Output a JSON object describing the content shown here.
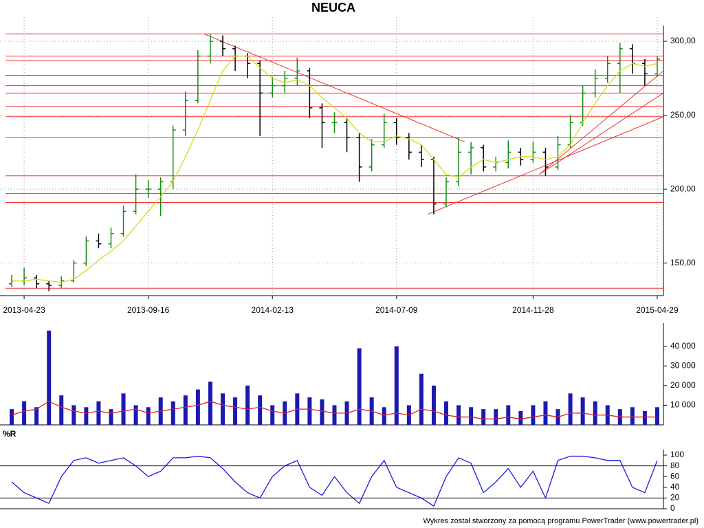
{
  "chart_data": [
    {
      "type": "ohlc",
      "title": "NEUCA",
      "categories": [
        null,
        "2013-04-23",
        null,
        null,
        null,
        null,
        null,
        null,
        null,
        null,
        null,
        "2013-09-16",
        null,
        null,
        null,
        null,
        null,
        null,
        null,
        null,
        null,
        "2014-02-13",
        null,
        null,
        null,
        null,
        null,
        null,
        null,
        null,
        null,
        "2014-07-09",
        null,
        null,
        null,
        null,
        null,
        null,
        null,
        null,
        null,
        null,
        "2014-11-28",
        null,
        null,
        null,
        null,
        null,
        null,
        null,
        null,
        null,
        "2015-04-29"
      ],
      "open": [
        136,
        138,
        140,
        136,
        135,
        138,
        150,
        165,
        163,
        170,
        185,
        200,
        200,
        205,
        240,
        260,
        290,
        300,
        295,
        290,
        285,
        265,
        270,
        275,
        280,
        255,
        245,
        245,
        235,
        215,
        230,
        245,
        235,
        225,
        220,
        190,
        205,
        225,
        228,
        215,
        218,
        225,
        220,
        225,
        215,
        230,
        245,
        265,
        275,
        285,
        295,
        285,
        278
      ],
      "high": [
        142,
        147,
        142,
        138,
        141,
        152,
        168,
        170,
        174,
        189,
        210,
        206,
        208,
        243,
        266,
        294,
        305,
        304,
        297,
        292,
        287,
        276,
        280,
        289,
        282,
        258,
        252,
        248,
        238,
        234,
        251,
        248,
        238,
        230,
        222,
        208,
        235,
        232,
        230,
        222,
        233,
        228,
        232,
        228,
        236,
        250,
        270,
        281,
        290,
        299,
        298,
        288,
        290
      ],
      "low": [
        134,
        135,
        133,
        131,
        133,
        137,
        148,
        160,
        160,
        168,
        183,
        194,
        182,
        200,
        236,
        258,
        285,
        290,
        280,
        275,
        236,
        262,
        265,
        270,
        248,
        228,
        238,
        225,
        205,
        212,
        228,
        230,
        220,
        215,
        183,
        188,
        202,
        210,
        212,
        212,
        214,
        216,
        218,
        209,
        213,
        228,
        243,
        262,
        272,
        265,
        278,
        270,
        276
      ],
      "close": [
        138,
        140,
        136,
        135,
        138,
        150,
        165,
        163,
        170,
        185,
        200,
        200,
        205,
        240,
        260,
        290,
        300,
        295,
        290,
        285,
        265,
        270,
        275,
        280,
        255,
        245,
        245,
        235,
        215,
        230,
        245,
        235,
        225,
        220,
        190,
        205,
        225,
        228,
        215,
        218,
        225,
        220,
        225,
        215,
        230,
        245,
        265,
        275,
        285,
        295,
        285,
        278,
        288
      ],
      "up_color": "#138a13",
      "down_color": "#000000",
      "series": [
        {
          "color": "#d8d820",
          "values": [
            138,
            138,
            139,
            138,
            137,
            139,
            145,
            152,
            158,
            165,
            175,
            185,
            195,
            205,
            222,
            240,
            260,
            280,
            290,
            290,
            282,
            275,
            272,
            274,
            270,
            262,
            255,
            248,
            238,
            232,
            232,
            236,
            234,
            230,
            220,
            210,
            208,
            215,
            220,
            218,
            220,
            222,
            222,
            220,
            222,
            230,
            245,
            258,
            270,
            280,
            285,
            283,
            285
          ]
        }
      ],
      "levels": [
        305,
        290,
        287,
        277,
        270,
        265,
        256,
        249,
        235,
        209,
        197,
        191,
        133
      ],
      "trendlines": [
        [
          [
            16,
            305
          ],
          [
            37,
            232
          ]
        ],
        [
          [
            34,
            183
          ],
          [
            53,
            249
          ]
        ],
        [
          [
            43,
            210
          ],
          [
            53,
            280
          ]
        ],
        [
          [
            43,
            210
          ],
          [
            53,
            265
          ]
        ]
      ],
      "line_color": "#f03030",
      "ylim": [
        128,
        307
      ],
      "yticks": [
        {
          "value": 150,
          "label": "150,00"
        },
        {
          "value": 200,
          "label": "200,00"
        },
        {
          "value": 250,
          "label": "250,00"
        },
        {
          "value": 300,
          "label": "300,00"
        }
      ],
      "grid": true
    },
    {
      "type": "bar",
      "color": "#1a1ab0",
      "values": [
        8000,
        12000,
        9000,
        48000,
        15000,
        10000,
        9000,
        12000,
        8000,
        16000,
        10000,
        9000,
        14000,
        12000,
        15000,
        18000,
        22000,
        16000,
        14000,
        20000,
        15000,
        10000,
        12000,
        16000,
        14000,
        13000,
        10000,
        12000,
        39000,
        14000,
        9000,
        40000,
        10000,
        26000,
        20000,
        12000,
        10000,
        9000,
        8000,
        8000,
        10000,
        7000,
        10000,
        12000,
        8000,
        16000,
        14000,
        12000,
        10000,
        8000,
        9000,
        7000,
        9000
      ],
      "series": [
        {
          "color": "#e02020",
          "values": [
            5000,
            7000,
            8000,
            12000,
            9000,
            7000,
            6000,
            7000,
            6000,
            7000,
            8000,
            6000,
            7000,
            8000,
            9000,
            10000,
            12000,
            10000,
            9000,
            8000,
            9000,
            7000,
            6000,
            8000,
            8000,
            7000,
            6000,
            6000,
            8000,
            7000,
            5000,
            6000,
            5000,
            8000,
            7000,
            5000,
            4000,
            4000,
            3000,
            3000,
            4000,
            3000,
            4000,
            5000,
            4000,
            6000,
            6000,
            5000,
            5000,
            4000,
            4000,
            4000,
            4000
          ]
        }
      ],
      "ylim": [
        0,
        49000
      ],
      "yticks": [
        {
          "value": 10000,
          "label": "10 000"
        },
        {
          "value": 20000,
          "label": "20 000"
        },
        {
          "value": 30000,
          "label": "30 000"
        },
        {
          "value": 40000,
          "label": "40 000"
        }
      ]
    },
    {
      "type": "line",
      "title": "%R",
      "series": [
        {
          "color": "#1a1ae0",
          "values": [
            50,
            30,
            20,
            10,
            60,
            90,
            95,
            85,
            90,
            95,
            80,
            60,
            70,
            95,
            95,
            98,
            95,
            75,
            50,
            30,
            20,
            60,
            80,
            90,
            40,
            25,
            60,
            30,
            10,
            60,
            90,
            40,
            30,
            20,
            5,
            60,
            95,
            85,
            30,
            50,
            75,
            40,
            70,
            20,
            90,
            98,
            98,
            95,
            90,
            90,
            40,
            30,
            90
          ]
        }
      ],
      "levels": [
        80,
        20
      ],
      "ylim": [
        0,
        100
      ],
      "yticks": [
        0,
        20,
        40,
        60,
        80,
        100
      ]
    }
  ],
  "footer": "Wykres został stworzony za pomocą programu PowerTrader (www.powertrader.pl)"
}
